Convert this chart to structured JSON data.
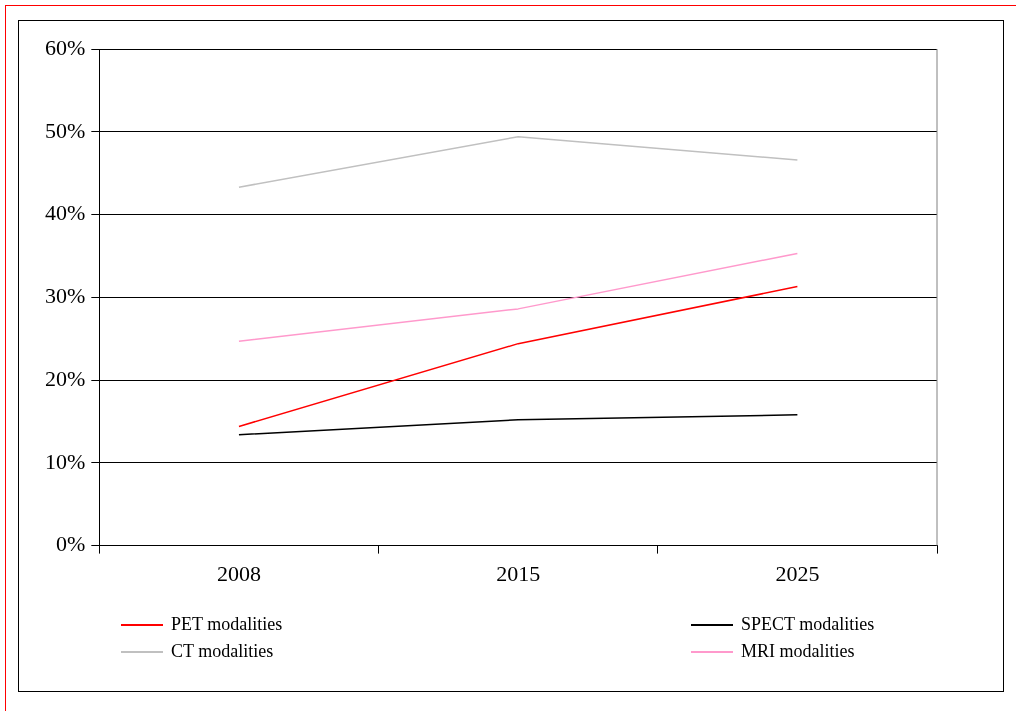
{
  "chart_data": {
    "type": "line",
    "categories": [
      "2008",
      "2015",
      "2025"
    ],
    "series": [
      {
        "name": "PET modalities",
        "color": "#ff0000",
        "values": [
          14.4,
          24.4,
          31.3
        ]
      },
      {
        "name": "SPECT modalities",
        "color": "#000000",
        "values": [
          13.4,
          15.2,
          15.8
        ]
      },
      {
        "name": "CT modalities",
        "color": "#c0c0c0",
        "values": [
          43.3,
          49.4,
          46.6
        ]
      },
      {
        "name": "MRI modalities",
        "color": "#ff99cc",
        "values": [
          24.7,
          28.6,
          35.3
        ]
      }
    ],
    "ylim": [
      0,
      60
    ],
    "yticks": [
      {
        "value": 0,
        "label": "0%"
      },
      {
        "value": 10,
        "label": "10%"
      },
      {
        "value": 20,
        "label": "20%"
      },
      {
        "value": 30,
        "label": "30%"
      },
      {
        "value": 40,
        "label": "40%"
      },
      {
        "value": 50,
        "label": "50%"
      },
      {
        "value": 60,
        "label": "60%"
      }
    ],
    "grid": "y",
    "legend": "bottom",
    "marker": "none",
    "line_style": "solid"
  }
}
